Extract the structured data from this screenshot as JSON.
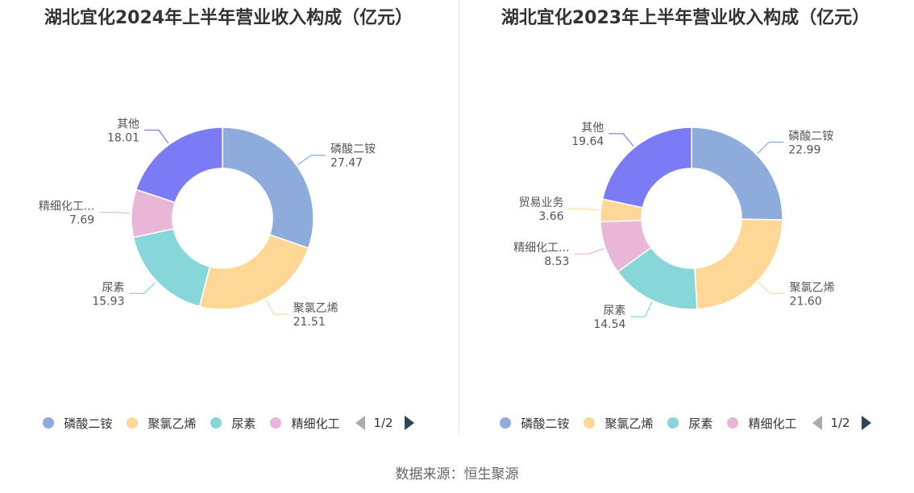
{
  "chart_data": [
    {
      "type": "pie",
      "title": "湖北宜化2024年上半年营业收入构成（亿元）",
      "categories": [
        "磷酸二铵",
        "聚氯乙烯",
        "尿素",
        "精细化工...",
        "其他"
      ],
      "values": [
        27.47,
        21.51,
        15.93,
        7.69,
        18.01
      ],
      "value_labels": [
        "27.47",
        "21.51",
        "15.93",
        "7.69",
        "18.01"
      ],
      "colors": [
        "#8eacdb",
        "#fdd796",
        "#87d6d9",
        "#e8b7d8",
        "#7b7bf5"
      ],
      "legend": [
        "磷酸二铵",
        "聚氯乙烯",
        "尿素",
        "精细化工"
      ],
      "legend_page": "1/2",
      "legend_position": "bottom"
    },
    {
      "type": "pie",
      "title": "湖北宜化2023年上半年营业收入构成（亿元）",
      "categories": [
        "磷酸二铵",
        "聚氯乙烯",
        "尿素",
        "精细化工...",
        "贸易业务",
        "其他"
      ],
      "values": [
        22.99,
        21.6,
        14.54,
        8.53,
        3.66,
        19.64
      ],
      "value_labels": [
        "22.99",
        "21.60",
        "14.54",
        "8.53",
        "3.66",
        "19.64"
      ],
      "colors": [
        "#8eacdb",
        "#fdd796",
        "#87d6d9",
        "#e8b7d8",
        "#fdd796",
        "#7b7bf5"
      ],
      "legend": [
        "磷酸二铵",
        "聚氯乙烯",
        "尿素",
        "精细化工"
      ],
      "legend_page": "1/2",
      "legend_position": "bottom"
    }
  ],
  "footer": {
    "source": "数据来源：恒生聚源"
  }
}
